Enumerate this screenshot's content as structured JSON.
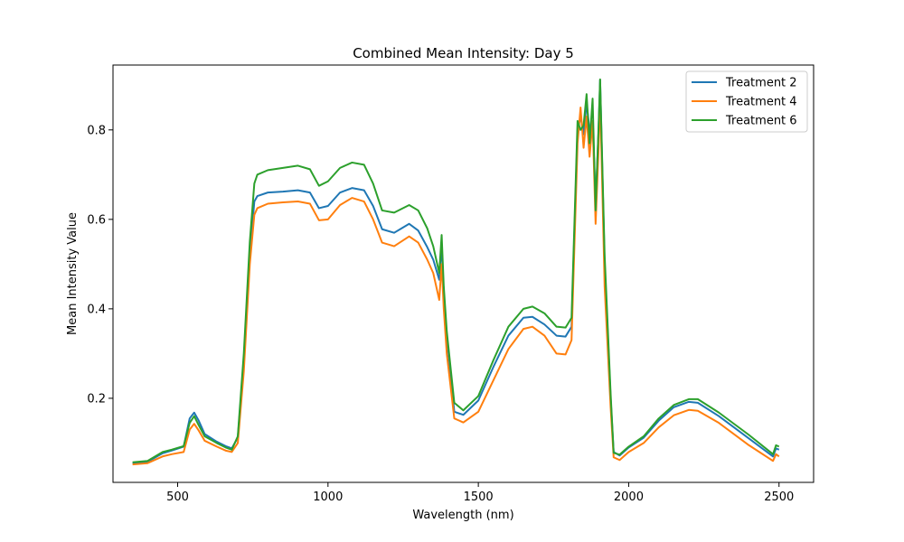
{
  "chart_data": {
    "type": "line",
    "title": "Combined Mean Intensity: Day 5",
    "xlabel": "Wavelength (nm)",
    "ylabel": "Mean Intensity Value",
    "xlim": [
      285,
      2615
    ],
    "ylim": [
      0.012,
      0.945
    ],
    "xticks": [
      500,
      1000,
      1500,
      2000,
      2500
    ],
    "yticks": [
      0.2,
      0.4,
      0.6,
      0.8
    ],
    "grid": false,
    "legend_position": "top-right",
    "series": [
      {
        "name": "Treatment 2",
        "color": "#1f77b4",
        "points": [
          [
            350,
            0.055
          ],
          [
            400,
            0.058
          ],
          [
            450,
            0.077
          ],
          [
            480,
            0.083
          ],
          [
            520,
            0.092
          ],
          [
            540,
            0.155
          ],
          [
            555,
            0.168
          ],
          [
            570,
            0.15
          ],
          [
            590,
            0.12
          ],
          [
            630,
            0.103
          ],
          [
            660,
            0.093
          ],
          [
            680,
            0.088
          ],
          [
            700,
            0.112
          ],
          [
            720,
            0.28
          ],
          [
            740,
            0.52
          ],
          [
            755,
            0.64
          ],
          [
            765,
            0.652
          ],
          [
            800,
            0.66
          ],
          [
            850,
            0.662
          ],
          [
            900,
            0.665
          ],
          [
            940,
            0.66
          ],
          [
            970,
            0.625
          ],
          [
            1000,
            0.63
          ],
          [
            1040,
            0.66
          ],
          [
            1080,
            0.67
          ],
          [
            1120,
            0.665
          ],
          [
            1150,
            0.63
          ],
          [
            1180,
            0.578
          ],
          [
            1220,
            0.57
          ],
          [
            1270,
            0.59
          ],
          [
            1300,
            0.575
          ],
          [
            1330,
            0.538
          ],
          [
            1350,
            0.51
          ],
          [
            1370,
            0.465
          ],
          [
            1378,
            0.545
          ],
          [
            1385,
            0.43
          ],
          [
            1395,
            0.34
          ],
          [
            1420,
            0.17
          ],
          [
            1450,
            0.163
          ],
          [
            1500,
            0.195
          ],
          [
            1550,
            0.27
          ],
          [
            1600,
            0.34
          ],
          [
            1650,
            0.38
          ],
          [
            1680,
            0.382
          ],
          [
            1720,
            0.365
          ],
          [
            1760,
            0.34
          ],
          [
            1790,
            0.338
          ],
          [
            1810,
            0.36
          ],
          [
            1830,
            0.8
          ],
          [
            1840,
            0.83
          ],
          [
            1850,
            0.79
          ],
          [
            1860,
            0.86
          ],
          [
            1870,
            0.8
          ],
          [
            1880,
            0.82
          ],
          [
            1890,
            0.64
          ],
          [
            1900,
            0.8
          ],
          [
            1905,
            0.912
          ],
          [
            1920,
            0.5
          ],
          [
            1940,
            0.2
          ],
          [
            1950,
            0.08
          ],
          [
            1970,
            0.072
          ],
          [
            2000,
            0.09
          ],
          [
            2050,
            0.112
          ],
          [
            2100,
            0.15
          ],
          [
            2150,
            0.18
          ],
          [
            2200,
            0.192
          ],
          [
            2230,
            0.19
          ],
          [
            2300,
            0.16
          ],
          [
            2400,
            0.11
          ],
          [
            2480,
            0.07
          ],
          [
            2490,
            0.088
          ],
          [
            2500,
            0.085
          ]
        ]
      },
      {
        "name": "Treatment 4",
        "color": "#ff7f0e",
        "points": [
          [
            350,
            0.052
          ],
          [
            400,
            0.055
          ],
          [
            450,
            0.07
          ],
          [
            480,
            0.075
          ],
          [
            520,
            0.08
          ],
          [
            540,
            0.13
          ],
          [
            555,
            0.143
          ],
          [
            570,
            0.128
          ],
          [
            590,
            0.105
          ],
          [
            630,
            0.092
          ],
          [
            660,
            0.083
          ],
          [
            680,
            0.08
          ],
          [
            700,
            0.1
          ],
          [
            720,
            0.26
          ],
          [
            740,
            0.5
          ],
          [
            755,
            0.61
          ],
          [
            765,
            0.625
          ],
          [
            800,
            0.635
          ],
          [
            850,
            0.638
          ],
          [
            900,
            0.64
          ],
          [
            940,
            0.635
          ],
          [
            970,
            0.598
          ],
          [
            1000,
            0.6
          ],
          [
            1040,
            0.632
          ],
          [
            1080,
            0.648
          ],
          [
            1120,
            0.64
          ],
          [
            1150,
            0.6
          ],
          [
            1180,
            0.548
          ],
          [
            1220,
            0.54
          ],
          [
            1270,
            0.562
          ],
          [
            1300,
            0.548
          ],
          [
            1330,
            0.51
          ],
          [
            1350,
            0.48
          ],
          [
            1370,
            0.42
          ],
          [
            1378,
            0.5
          ],
          [
            1385,
            0.4
          ],
          [
            1395,
            0.3
          ],
          [
            1420,
            0.155
          ],
          [
            1450,
            0.146
          ],
          [
            1500,
            0.17
          ],
          [
            1550,
            0.24
          ],
          [
            1600,
            0.31
          ],
          [
            1650,
            0.355
          ],
          [
            1680,
            0.36
          ],
          [
            1720,
            0.34
          ],
          [
            1760,
            0.3
          ],
          [
            1790,
            0.298
          ],
          [
            1810,
            0.33
          ],
          [
            1830,
            0.77
          ],
          [
            1840,
            0.85
          ],
          [
            1850,
            0.76
          ],
          [
            1860,
            0.83
          ],
          [
            1870,
            0.74
          ],
          [
            1880,
            0.82
          ],
          [
            1890,
            0.59
          ],
          [
            1900,
            0.76
          ],
          [
            1905,
            0.88
          ],
          [
            1920,
            0.45
          ],
          [
            1940,
            0.18
          ],
          [
            1950,
            0.068
          ],
          [
            1970,
            0.062
          ],
          [
            2000,
            0.08
          ],
          [
            2050,
            0.1
          ],
          [
            2100,
            0.135
          ],
          [
            2150,
            0.162
          ],
          [
            2200,
            0.174
          ],
          [
            2230,
            0.172
          ],
          [
            2300,
            0.145
          ],
          [
            2400,
            0.095
          ],
          [
            2480,
            0.06
          ],
          [
            2490,
            0.075
          ],
          [
            2500,
            0.07
          ]
        ]
      },
      {
        "name": "Treatment 6",
        "color": "#2ca02c",
        "points": [
          [
            350,
            0.057
          ],
          [
            400,
            0.06
          ],
          [
            450,
            0.08
          ],
          [
            480,
            0.085
          ],
          [
            520,
            0.093
          ],
          [
            540,
            0.145
          ],
          [
            555,
            0.16
          ],
          [
            570,
            0.14
          ],
          [
            590,
            0.115
          ],
          [
            630,
            0.1
          ],
          [
            660,
            0.09
          ],
          [
            680,
            0.085
          ],
          [
            700,
            0.115
          ],
          [
            720,
            0.3
          ],
          [
            740,
            0.55
          ],
          [
            755,
            0.68
          ],
          [
            765,
            0.7
          ],
          [
            800,
            0.71
          ],
          [
            850,
            0.715
          ],
          [
            900,
            0.72
          ],
          [
            940,
            0.712
          ],
          [
            970,
            0.675
          ],
          [
            1000,
            0.685
          ],
          [
            1040,
            0.715
          ],
          [
            1080,
            0.727
          ],
          [
            1120,
            0.722
          ],
          [
            1150,
            0.68
          ],
          [
            1180,
            0.62
          ],
          [
            1220,
            0.615
          ],
          [
            1270,
            0.632
          ],
          [
            1300,
            0.62
          ],
          [
            1330,
            0.58
          ],
          [
            1350,
            0.54
          ],
          [
            1370,
            0.48
          ],
          [
            1378,
            0.565
          ],
          [
            1385,
            0.45
          ],
          [
            1395,
            0.35
          ],
          [
            1420,
            0.19
          ],
          [
            1450,
            0.173
          ],
          [
            1500,
            0.205
          ],
          [
            1550,
            0.285
          ],
          [
            1600,
            0.36
          ],
          [
            1650,
            0.4
          ],
          [
            1680,
            0.405
          ],
          [
            1720,
            0.39
          ],
          [
            1760,
            0.36
          ],
          [
            1790,
            0.358
          ],
          [
            1810,
            0.38
          ],
          [
            1830,
            0.82
          ],
          [
            1840,
            0.8
          ],
          [
            1850,
            0.81
          ],
          [
            1860,
            0.88
          ],
          [
            1870,
            0.77
          ],
          [
            1880,
            0.87
          ],
          [
            1890,
            0.62
          ],
          [
            1900,
            0.81
          ],
          [
            1905,
            0.913
          ],
          [
            1920,
            0.52
          ],
          [
            1940,
            0.21
          ],
          [
            1950,
            0.078
          ],
          [
            1970,
            0.074
          ],
          [
            2000,
            0.092
          ],
          [
            2050,
            0.115
          ],
          [
            2100,
            0.155
          ],
          [
            2150,
            0.185
          ],
          [
            2200,
            0.198
          ],
          [
            2230,
            0.198
          ],
          [
            2300,
            0.168
          ],
          [
            2400,
            0.118
          ],
          [
            2480,
            0.075
          ],
          [
            2490,
            0.095
          ],
          [
            2500,
            0.092
          ]
        ]
      }
    ]
  }
}
